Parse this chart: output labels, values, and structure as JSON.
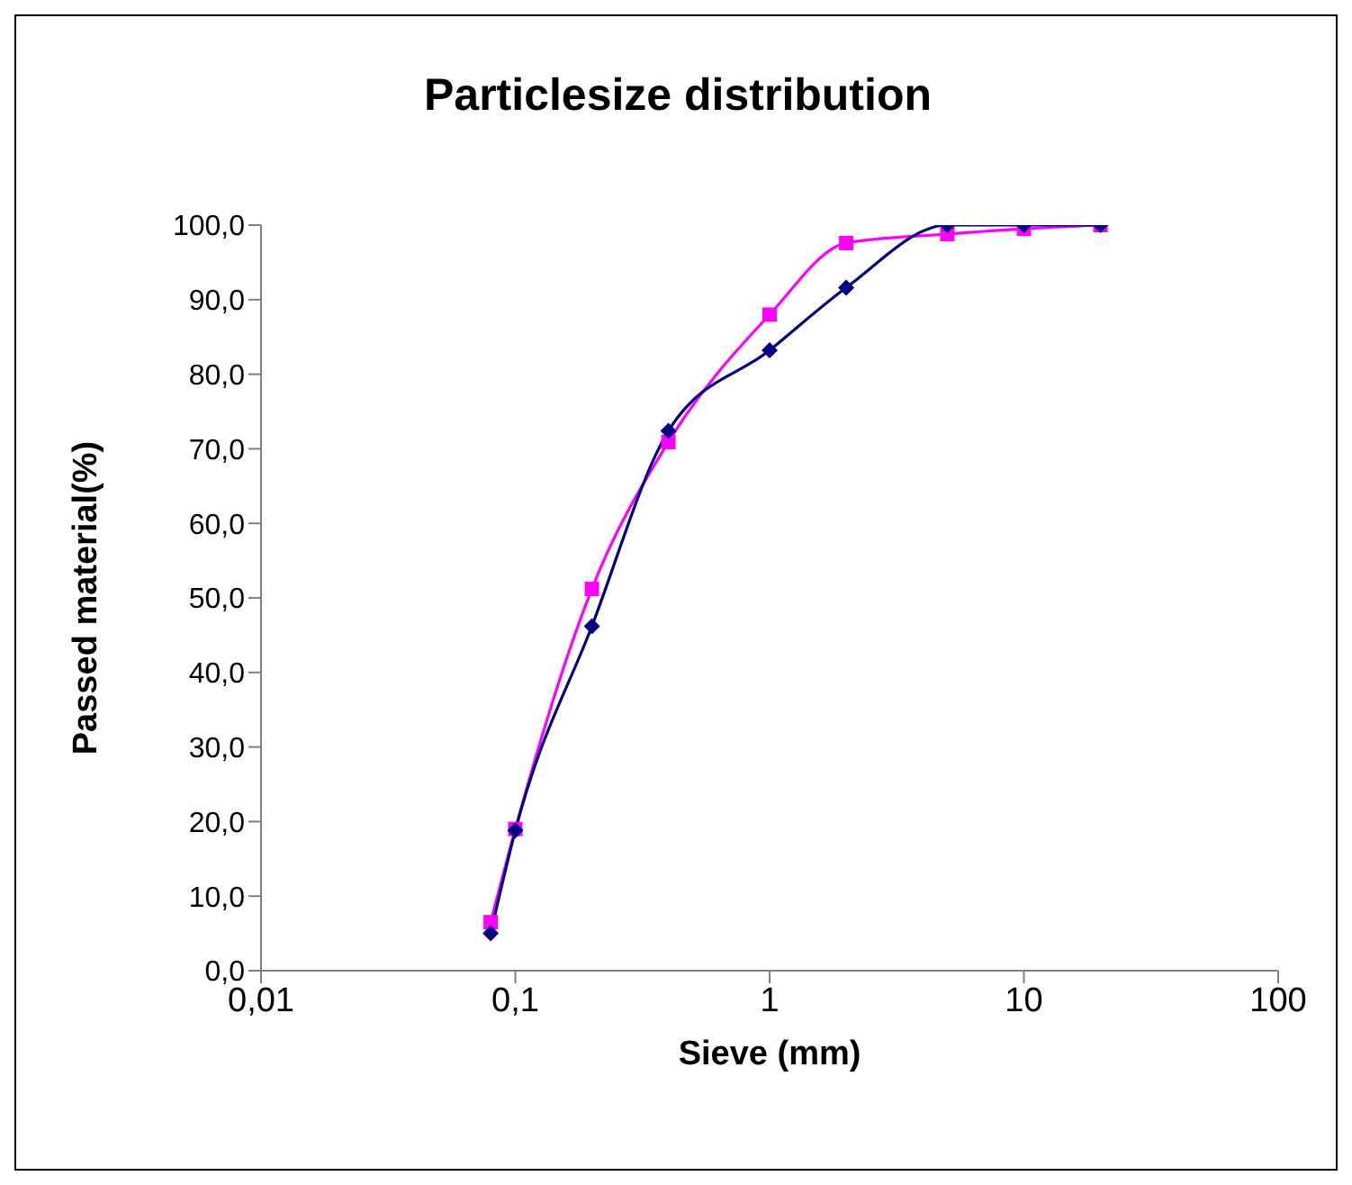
{
  "chart_data": {
    "type": "line",
    "title": "Particlesize distribution",
    "xlabel": "Sieve (mm)",
    "ylabel": "Passed material(%)",
    "x": [
      0.08,
      0.1,
      0.2,
      0.4,
      1,
      2,
      5,
      10,
      20
    ],
    "series": [
      {
        "color": "#000080",
        "marker": "diamond",
        "values": [
          5.0,
          18.8,
          46.2,
          72.4,
          83.2,
          91.6,
          100.0,
          100.0,
          100.0
        ]
      },
      {
        "color": "#ff00ff",
        "marker": "square",
        "values": [
          6.5,
          19.0,
          51.2,
          70.9,
          88.0,
          97.6,
          98.8,
          99.5,
          100.0
        ]
      }
    ],
    "log": "x",
    "xlim": [
      0.01,
      100
    ],
    "xticks": [
      {
        "value": 0.01,
        "label": "0,01"
      },
      {
        "value": 0.1,
        "label": "0,1"
      },
      1,
      10,
      100
    ],
    "ylim": [
      0,
      100
    ],
    "yticks": [
      {
        "value": 0,
        "label": "0,0"
      },
      {
        "value": 10,
        "label": "10,0"
      },
      {
        "value": 20,
        "label": "20,0"
      },
      {
        "value": 30,
        "label": "30,0"
      },
      {
        "value": 40,
        "label": "40,0"
      },
      {
        "value": 50,
        "label": "50,0"
      },
      {
        "value": 60,
        "label": "60,0"
      },
      {
        "value": 70,
        "label": "70,0"
      },
      {
        "value": 80,
        "label": "80,0"
      },
      {
        "value": 90,
        "label": "90,0"
      },
      {
        "value": 100,
        "label": "100,0"
      }
    ],
    "grid": false,
    "legend": false,
    "line_style": "solid"
  }
}
